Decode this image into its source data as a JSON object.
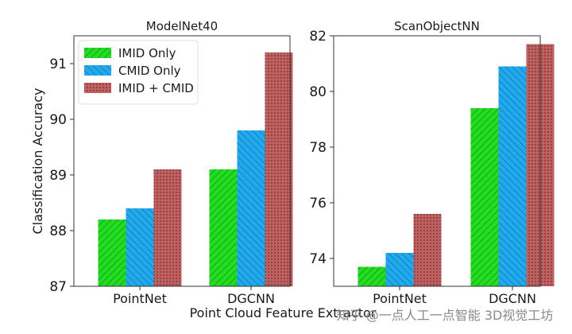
{
  "chart_data": [
    {
      "type": "bar",
      "title": "ModelNet40",
      "categories": [
        "PointNet",
        "DGCNN"
      ],
      "series": [
        {
          "name": "IMID Only",
          "values": [
            88.2,
            89.1
          ]
        },
        {
          "name": "CMID Only",
          "values": [
            88.4,
            89.8
          ]
        },
        {
          "name": "IMID + CMID",
          "values": [
            89.1,
            91.2
          ]
        }
      ],
      "ylabel": "Classification Accuracy",
      "xlabel": "Point Cloud Feature Extractor",
      "ylim": [
        87,
        91.5
      ],
      "yticks": [
        87,
        88,
        89,
        90,
        91
      ],
      "legend": "top-left",
      "grid": false
    },
    {
      "type": "bar",
      "title": "ScanObjectNN",
      "categories": [
        "PointNet",
        "DGCNN"
      ],
      "series": [
        {
          "name": "IMID Only",
          "values": [
            73.7,
            79.4
          ]
        },
        {
          "name": "CMID Only",
          "values": [
            74.2,
            80.9
          ]
        },
        {
          "name": "IMID + CMID",
          "values": [
            75.6,
            81.7
          ]
        }
      ],
      "ylabel": "",
      "xlabel": "Point Cloud Feature Extractor",
      "ylim": [
        73,
        82
      ],
      "yticks": [
        74,
        76,
        78,
        80,
        82
      ],
      "legend": "none",
      "grid": false
    }
  ],
  "series_colors": {
    "IMID Only": "#22dd22",
    "CMID Only": "#22aaee",
    "IMID + CMID": "#c06060"
  },
  "watermark": "知乎 @一点人工一点智能  3D视觉工坊"
}
